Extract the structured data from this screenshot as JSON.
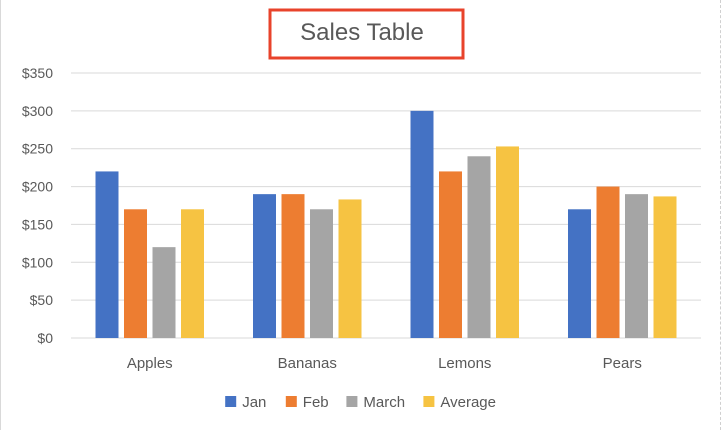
{
  "chart_data": {
    "type": "bar",
    "title": "Sales Table",
    "categories": [
      "Apples",
      "Bananas",
      "Lemons",
      "Pears"
    ],
    "series": [
      {
        "name": "Jan",
        "color": "#4472c4",
        "values": [
          220,
          190,
          300,
          170
        ]
      },
      {
        "name": "Feb",
        "color": "#ed7d31",
        "values": [
          170,
          190,
          220,
          200
        ]
      },
      {
        "name": "March",
        "color": "#a5a5a5",
        "values": [
          120,
          170,
          240,
          190
        ]
      },
      {
        "name": "Average",
        "color": "#f6c342",
        "values": [
          170,
          183,
          253,
          187
        ]
      }
    ],
    "ylim": [
      0,
      350
    ],
    "yticks": [
      0,
      50,
      100,
      150,
      200,
      250,
      300,
      350
    ],
    "ytick_labels": [
      "$0",
      "$50",
      "$100",
      "$150",
      "$200",
      "$250",
      "$300",
      "$350"
    ],
    "grid": true,
    "legend_position": "bottom",
    "title_highlight_color": "#e8432b",
    "gridline_color": "#d9d9d9",
    "text_color": "#595959"
  }
}
